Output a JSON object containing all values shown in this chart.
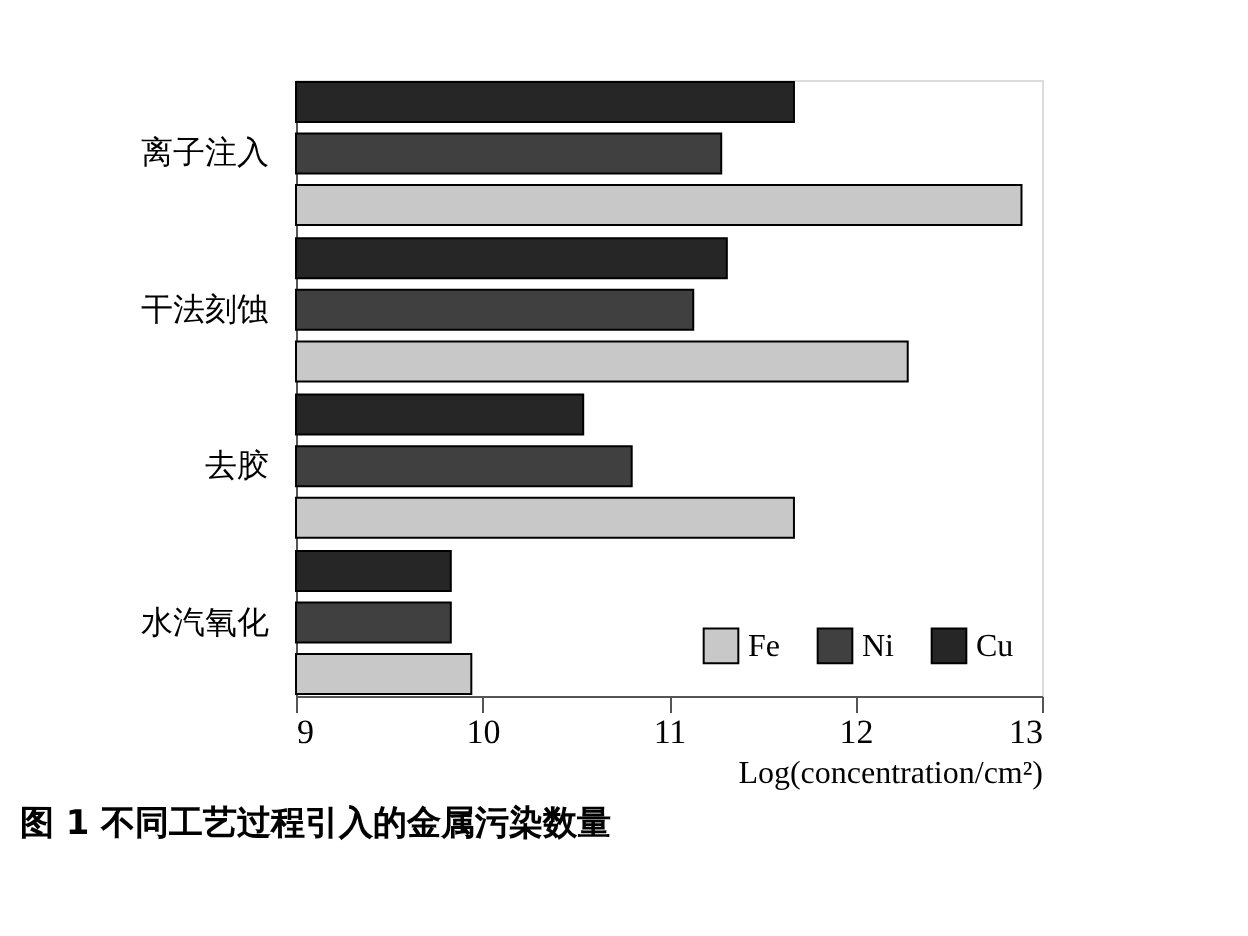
{
  "chart_data": {
    "type": "bar",
    "orientation": "horizontal",
    "title": "图 1   不同工艺过程引入的金属污染数量",
    "xlabel": "Log(concentration/cm²)",
    "categories": [
      "离子注入",
      "干法刻蚀",
      "去胶",
      "水汽氧化"
    ],
    "series": [
      {
        "name": "Cu",
        "color": "#262626",
        "values": [
          11.67,
          11.31,
          10.54,
          9.83
        ]
      },
      {
        "name": "Ni",
        "color": "#404040",
        "values": [
          11.28,
          11.13,
          10.8,
          9.83
        ]
      },
      {
        "name": "Fe",
        "color": "#c8c8c8",
        "values": [
          12.89,
          12.28,
          11.67,
          9.94
        ]
      }
    ],
    "xlim": [
      9,
      13
    ],
    "xticks": [
      9,
      10,
      11,
      12,
      13
    ],
    "grid": false,
    "legend": "bottom right"
  }
}
